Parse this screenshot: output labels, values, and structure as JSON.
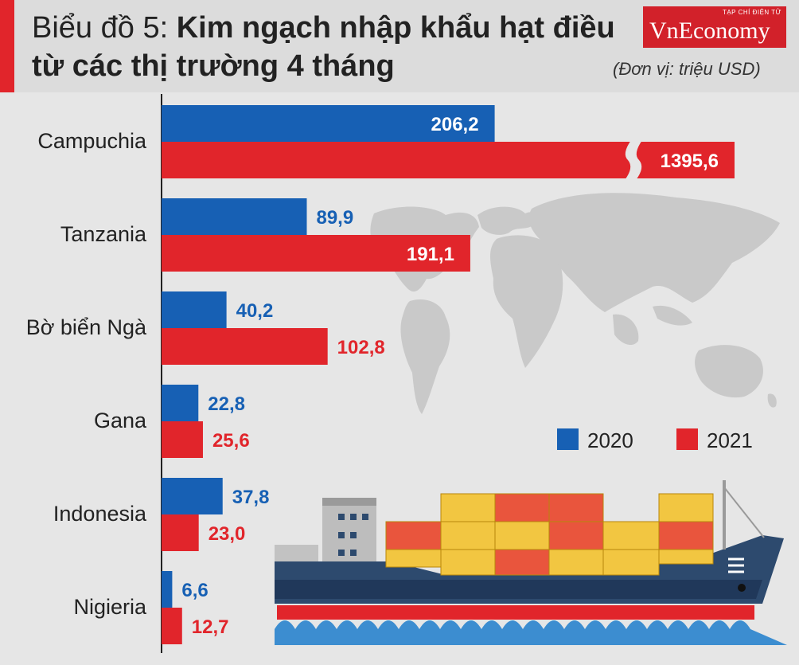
{
  "header": {
    "title_prefix": "Biểu đồ 5:",
    "title_bold": "Kim ngạch nhập khẩu hạt điều",
    "title_line2": "từ các thị trường 4 tháng",
    "unit": "(Đơn vị: triệu USD)"
  },
  "logo": {
    "small": "TẠP CHÍ ĐIỆN TỬ",
    "brand": "VnEconomy"
  },
  "colors": {
    "s2020": "#1760b4",
    "s2021": "#e1252b",
    "accent": "#d2212a"
  },
  "chart_data": {
    "type": "bar",
    "orientation": "horizontal",
    "title": "Biểu đồ 5: Kim ngạch nhập khẩu hạt điều từ các thị trường 4 tháng",
    "unit": "triệu USD",
    "categories": [
      "Campuchia",
      "Tanzania",
      "Bờ biển Ngà",
      "Gana",
      "Indonesia",
      "Nigieria"
    ],
    "series": [
      {
        "name": "2020",
        "values": [
          206.2,
          89.9,
          40.2,
          22.8,
          37.8,
          6.6
        ],
        "labels": [
          "206,2",
          "89,9",
          "40,2",
          "22,8",
          "37,8",
          "6,6"
        ]
      },
      {
        "name": "2021",
        "values": [
          1395.6,
          191.1,
          102.8,
          25.6,
          23.0,
          12.7
        ],
        "labels": [
          "1395,6",
          "191,1",
          "102,8",
          "25,6",
          "23,0",
          "12,7"
        ]
      }
    ],
    "axis_break": {
      "category": "Campuchia",
      "series": "2021"
    },
    "legend": "right",
    "grid": false
  }
}
